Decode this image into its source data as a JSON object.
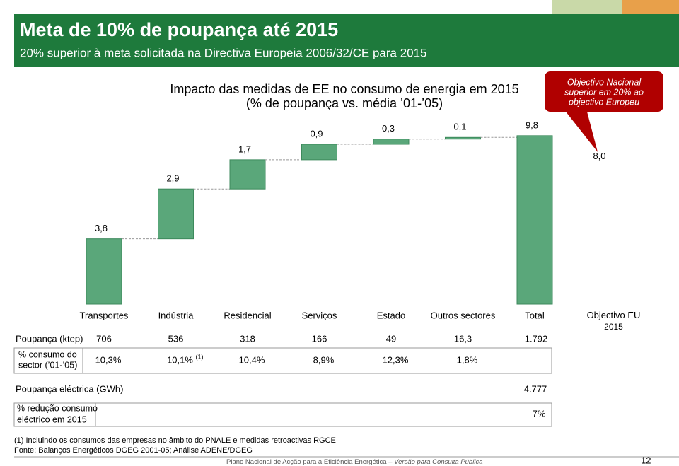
{
  "header": {
    "title": "Meta de 10% de poupança até 2015",
    "subtitle": "20% superior à meta solicitada na Directiva Europeia 2006/32/CE para 2015"
  },
  "callout": [
    "Objectivo Nacional",
    "superior em 20% ao",
    "objectivo Europeu"
  ],
  "chart_data": {
    "type": "waterfall",
    "title": "Impacto das medidas de EE no consumo de energia em 2015",
    "subtitle": "(% de poupança vs. média ’01-’05)",
    "categories": [
      "Transportes",
      "Indústria",
      "Residencial",
      "Serviços",
      "Estado",
      "Outros sectores",
      "Total",
      "Objectivo EU 2015"
    ],
    "values": [
      3.8,
      2.9,
      1.7,
      0.9,
      0.3,
      0.1,
      9.8,
      8.0
    ],
    "value_labels": [
      "3,8",
      "2,9",
      "1,7",
      "0,9",
      "0,3",
      "0,1",
      "9,8",
      "8,0"
    ],
    "measure": [
      "step",
      "step",
      "step",
      "step",
      "step",
      "step",
      "total",
      "target"
    ],
    "color": "#5aa77a",
    "ylim": [
      0,
      10
    ]
  },
  "table": {
    "rows": [
      {
        "label": "Poupança (ktep)",
        "cells": [
          "706",
          "536",
          "318",
          "166",
          "49",
          "16,3",
          "1.792"
        ]
      },
      {
        "label": [
          "% consumo do",
          "sector (’01-’05)"
        ],
        "cells": [
          "10,3%",
          "10,1%",
          "10,4%",
          "8,9%",
          "12,3%",
          "1,8%"
        ],
        "note": "(1)"
      }
    ]
  },
  "electric": {
    "rows": [
      {
        "label": "Poupança eléctrica (GWh)",
        "value": "4.777"
      },
      {
        "label": [
          "% redução consumo",
          "eléctrico em 2015"
        ],
        "value": "7%"
      }
    ]
  },
  "footnotes": [
    "(1)  Incluindo os consumos das empresas no âmbito do PNALE e medidas retroactivas RGCE",
    "Fonte: Balanços Energéticos DGEG 2001-05; Análise ADENE/DGEG"
  ],
  "footer": {
    "text": "Plano Nacional de Acção para a Eficiência Energética",
    "dash": "–",
    "version": "Versão para Consulta Pública",
    "page": "12"
  }
}
